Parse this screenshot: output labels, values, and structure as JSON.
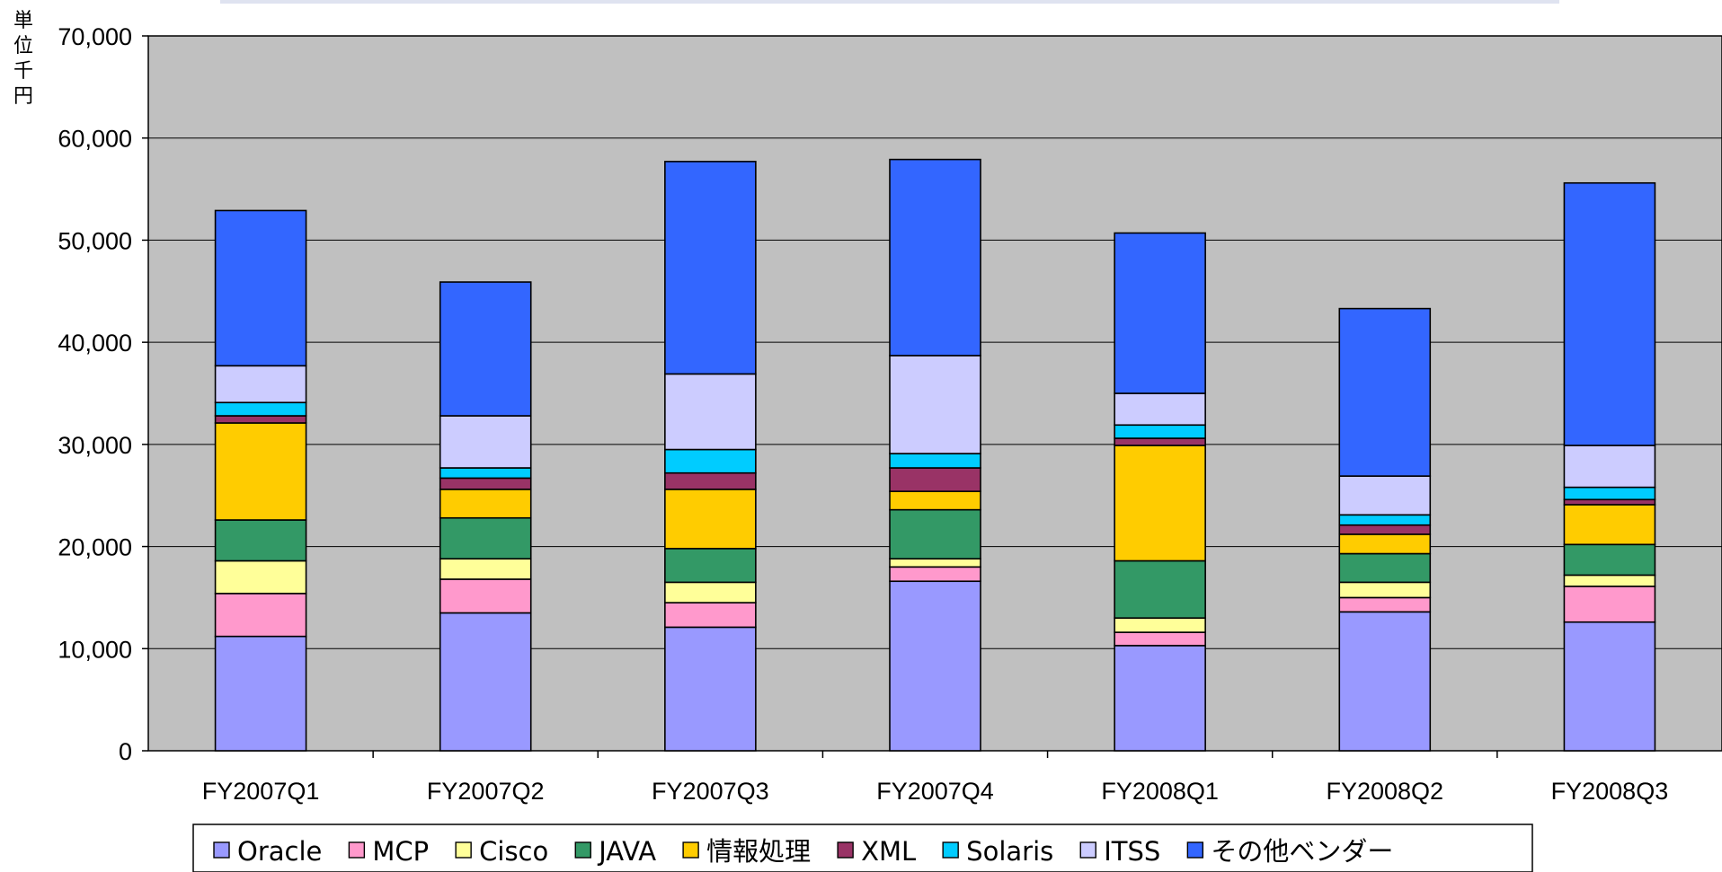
{
  "chart_data": {
    "type": "bar",
    "stacked": true,
    "title": "",
    "xlabel": "",
    "ylabel": "単位千円",
    "ylim": [
      0,
      70000
    ],
    "yticks": [
      0,
      10000,
      20000,
      30000,
      40000,
      50000,
      60000,
      70000
    ],
    "ytick_labels": [
      "0",
      "10,000",
      "20,000",
      "30,000",
      "40,000",
      "50,000",
      "60,000",
      "70,000"
    ],
    "grid": true,
    "legend_position": "bottom",
    "plot_background": "#c0c0c0",
    "categories": [
      "FY2007Q1",
      "FY2007Q2",
      "FY2007Q3",
      "FY2007Q4",
      "FY2008Q1",
      "FY2008Q2",
      "FY2008Q3"
    ],
    "series": [
      {
        "name": "Oracle",
        "color": "#9999ff",
        "values": [
          11200,
          13500,
          12100,
          16600,
          10300,
          13600,
          12600
        ]
      },
      {
        "name": "MCP",
        "color": "#ff99cc",
        "values": [
          4200,
          3300,
          2400,
          1400,
          1300,
          1400,
          3500
        ]
      },
      {
        "name": "Cisco",
        "color": "#ffff99",
        "values": [
          3200,
          2000,
          2000,
          800,
          1400,
          1500,
          1100
        ]
      },
      {
        "name": "JAVA",
        "color": "#339966",
        "values": [
          4000,
          4000,
          3300,
          4800,
          5600,
          2800,
          3000
        ]
      },
      {
        "name": "情報処理",
        "color": "#ffcc00",
        "values": [
          9500,
          2800,
          5800,
          1800,
          11300,
          1900,
          3900
        ]
      },
      {
        "name": "XML",
        "color": "#993366",
        "values": [
          700,
          1100,
          1600,
          2300,
          700,
          900,
          500
        ]
      },
      {
        "name": "Solaris",
        "color": "#00ccff",
        "values": [
          1300,
          1000,
          2300,
          1400,
          1300,
          1000,
          1200
        ]
      },
      {
        "name": "ITSS",
        "color": "#ccccff",
        "values": [
          3600,
          5100,
          7400,
          9600,
          3100,
          3800,
          4100
        ]
      },
      {
        "name": "その他ベンダー",
        "color": "#3366ff",
        "values": [
          15200,
          13100,
          20800,
          19200,
          15700,
          16400,
          25700
        ]
      }
    ]
  }
}
